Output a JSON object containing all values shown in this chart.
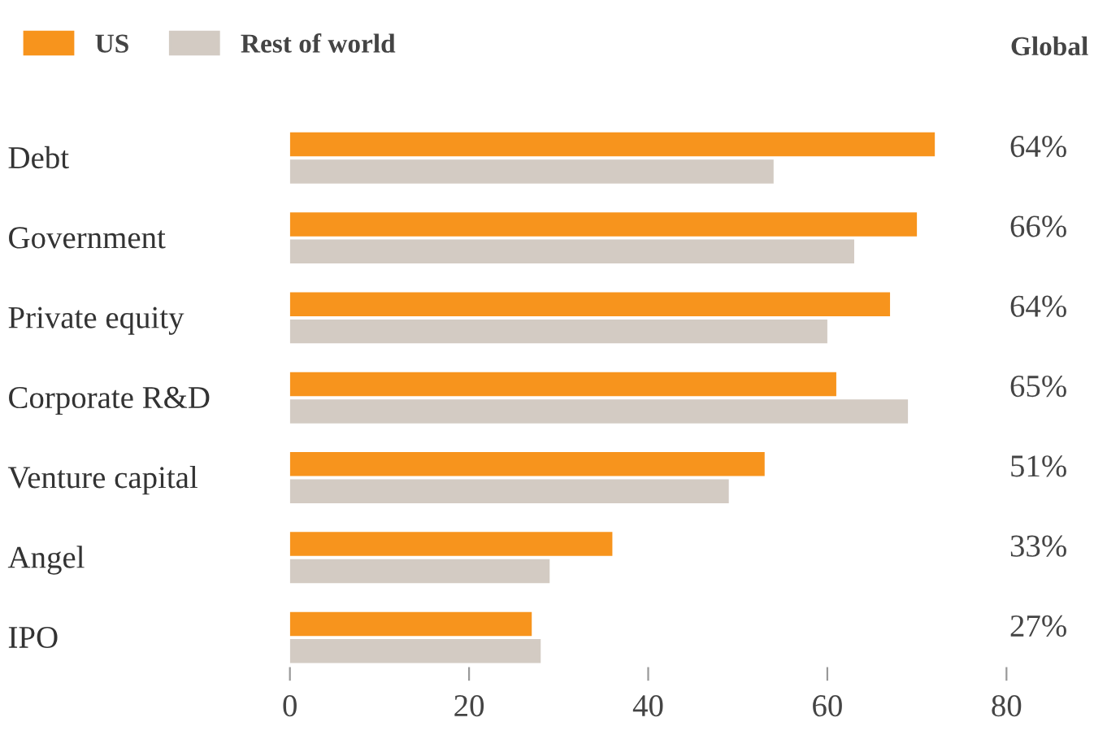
{
  "chart_data": {
    "type": "bar",
    "orientation": "horizontal",
    "categories": [
      "Debt",
      "Government",
      "Private equity",
      "Corporate R&D",
      "Venture capital",
      "Angel",
      "IPO"
    ],
    "series": [
      {
        "name": "US",
        "color": "#f7941d",
        "values": [
          72,
          70,
          67,
          61,
          53,
          36,
          27
        ]
      },
      {
        "name": "Rest of world",
        "color": "#d3cbc3",
        "values": [
          54,
          63,
          60,
          69,
          49,
          29,
          28
        ]
      }
    ],
    "xlim": [
      0,
      80
    ],
    "xticks": [
      0,
      20,
      40,
      60,
      80
    ],
    "grid": false,
    "legend": "top left",
    "annotations": [
      "Global",
      "64%",
      "66%",
      "64%",
      "65%",
      "51%",
      "33%",
      "27%"
    ]
  }
}
